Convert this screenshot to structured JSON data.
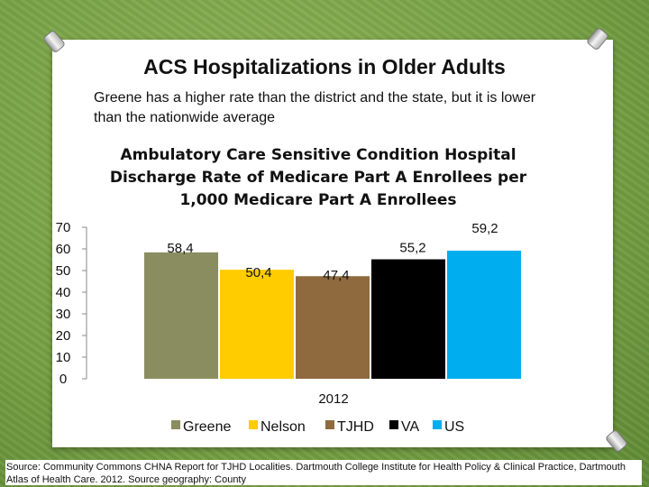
{
  "slide": {
    "title": "ACS Hospitalizations in Older Adults",
    "subtitle": "Greene has a higher rate than the district and the state, but it is lower than the nationwide average",
    "source": "Source: Community Commons CHNA Report for TJHD Localities. Dartmouth College Institute for Health Policy & Clinical Practice, Dartmouth Atlas of Health Care. 2012. Source geography: County"
  },
  "chart_data": {
    "type": "bar",
    "title_lines": [
      "Ambulatory Care Sensitive Condition Hospital",
      "Discharge Rate of Medicare Part A Enrollees per",
      "1,000 Medicare Part A Enrollees"
    ],
    "categories": [
      "2012"
    ],
    "series": [
      {
        "name": "Greene",
        "values": [
          58.4
        ],
        "label": "58,4",
        "color": "#8a8d5f"
      },
      {
        "name": "Nelson",
        "values": [
          50.4
        ],
        "label": "50,4",
        "color": "#ffcc00"
      },
      {
        "name": "TJHD",
        "values": [
          47.4
        ],
        "label": "47,4",
        "color": "#8f6a3e"
      },
      {
        "name": "VA",
        "values": [
          55.2
        ],
        "label": "55,2",
        "color": "#000000"
      },
      {
        "name": "US",
        "values": [
          59.2
        ],
        "label": "59,2",
        "color": "#00aeef"
      }
    ],
    "ylim": [
      0,
      70
    ],
    "yticks": [
      "0",
      "10",
      "20",
      "30",
      "40",
      "50",
      "60",
      "70"
    ],
    "legend": "bottom"
  }
}
